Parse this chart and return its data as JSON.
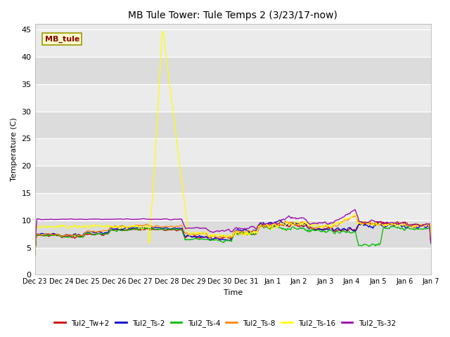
{
  "title": "MB Tule Tower: Tule Temps 2 (3/23/17-now)",
  "xlabel": "Time",
  "ylabel": "Temperature (C)",
  "ylim": [
    0,
    46
  ],
  "yticks": [
    0,
    5,
    10,
    15,
    20,
    25,
    30,
    35,
    40,
    45
  ],
  "xtick_labels": [
    "Dec 23",
    "Dec 24",
    "Dec 25",
    "Dec 26",
    "Dec 27",
    "Dec 28",
    "Dec 29",
    "Dec 30",
    "Dec 31",
    "Jan 1",
    "Jan 2",
    "Jan 3",
    "Jan 4",
    "Jan 5",
    "Jan 6",
    "Jan 7"
  ],
  "annotation_text": "MB_tule",
  "annotation_color": "#8B0000",
  "annotation_bg": "#FFFFCC",
  "annotation_border": "#999900",
  "bg_color_light": "#EBEBEB",
  "bg_color_dark": "#DCDCDC",
  "series": [
    {
      "label": "Tul2_Tw+2",
      "color": "#CC0000"
    },
    {
      "label": "Tul2_Ts-2",
      "color": "#0000CC"
    },
    {
      "label": "Tul2_Ts-4",
      "color": "#00BB00"
    },
    {
      "label": "Tul2_Ts-8",
      "color": "#FF8800"
    },
    {
      "label": "Tul2_Ts-16",
      "color": "#FFFF00"
    },
    {
      "label": "Tul2_Ts-32",
      "color": "#9900AA"
    }
  ]
}
